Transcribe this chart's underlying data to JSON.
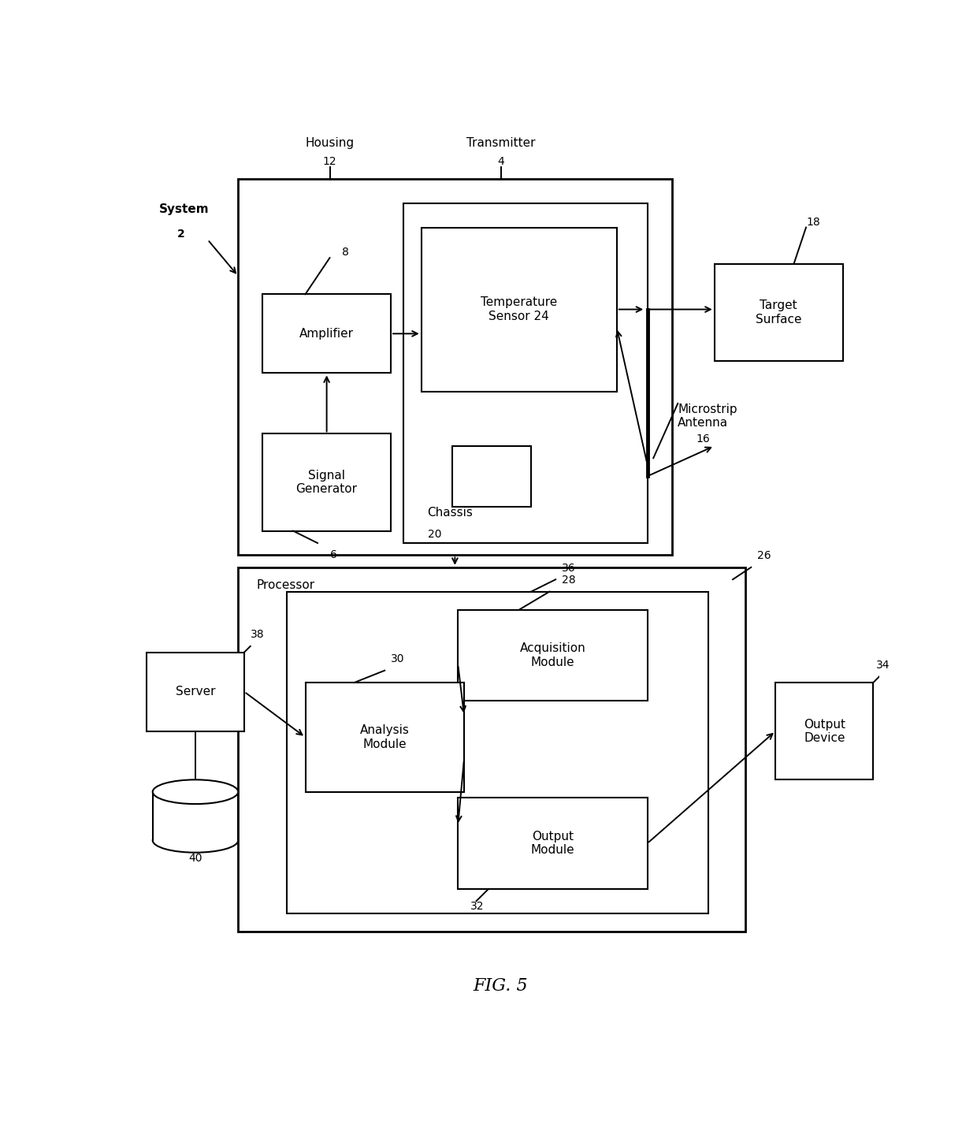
{
  "title": "FIG. 5",
  "background_color": "#ffffff",
  "fig_width": 12.4,
  "fig_height": 14.49,
  "labels": {
    "system": "System",
    "system_num": "2",
    "housing": "Housing",
    "housing_num": "12",
    "transmitter": "Transmitter",
    "transmitter_num": "4",
    "amplifier": "Amplifier",
    "amplifier_num": "8",
    "signal_gen": "Signal\nGenerator",
    "signal_gen_num": "6",
    "temp_sensor": "Temperature\nSensor 24",
    "chassis": "Chassis",
    "chassis_num": "20",
    "target_surface": "Target\nSurface",
    "target_surface_num": "18",
    "microstrip": "Microstrip\nAntenna",
    "microstrip_num": "16",
    "processor": "Processor",
    "processor_num": "26",
    "inner_box_num": "36",
    "acquisition": "Acquisition\nModule",
    "acquisition_num": "28",
    "analysis": "Analysis\nModule",
    "analysis_num": "30",
    "output_module": "Output\nModule",
    "output_module_num": "32",
    "server": "Server",
    "server_num": "38",
    "database_num": "40",
    "output_device": "Output\nDevice",
    "output_device_num": "34"
  }
}
